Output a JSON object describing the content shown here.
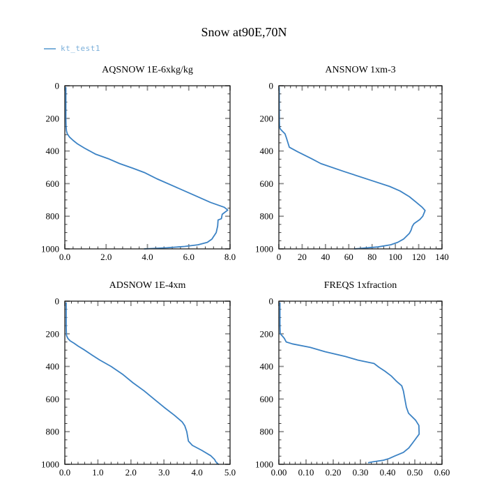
{
  "header": {
    "title": "Snow at90E,70N"
  },
  "legend": {
    "series_label": "kt_test1",
    "series_color": "#7cb0da"
  },
  "chart_data": {
    "type": "line",
    "title": "Snow at90E,70N",
    "series_name": "kt_test1",
    "line_color": "#3b82c4",
    "layout_hint": "2x2 grid of vertical profiles, pressure on y-axis inverted (0 top, 1000 bottom), ticks inward on all four sides, no grid, legend top-left",
    "y_axis": {
      "range": [
        0,
        1000
      ],
      "inverted": true,
      "tick_values": [
        0,
        200,
        400,
        600,
        800,
        1000
      ],
      "tick_labels": [
        "0",
        "200",
        "400",
        "600",
        "800",
        "1000"
      ],
      "minor_step": 50
    },
    "plots": [
      {
        "id": "aqsnow",
        "title": "AQSNOW  1E-6xkg/kg",
        "x_range": [
          0,
          8
        ],
        "x_tick_values": [
          0,
          2,
          4,
          6,
          8
        ],
        "x_tick_labels": [
          "0.0",
          "2.0",
          "4.0",
          "6.0",
          "8.0"
        ],
        "x_minor_step": 0.4,
        "points": [
          [
            10,
            0.05
          ],
          [
            100,
            0.05
          ],
          [
            200,
            0.05
          ],
          [
            250,
            0.06
          ],
          [
            277,
            0.08
          ],
          [
            295,
            0.12
          ],
          [
            315,
            0.23
          ],
          [
            335,
            0.4
          ],
          [
            357,
            0.62
          ],
          [
            383,
            0.96
          ],
          [
            420,
            1.5
          ],
          [
            447,
            2.1
          ],
          [
            477,
            2.65
          ],
          [
            506,
            3.3
          ],
          [
            532,
            3.85
          ],
          [
            570,
            4.45
          ],
          [
            620,
            5.35
          ],
          [
            670,
            6.25
          ],
          [
            715,
            7.05
          ],
          [
            745,
            7.72
          ],
          [
            762,
            7.89
          ],
          [
            788,
            7.62
          ],
          [
            815,
            7.58
          ],
          [
            823,
            7.42
          ],
          [
            860,
            7.4
          ],
          [
            900,
            7.33
          ],
          [
            940,
            7.12
          ],
          [
            960,
            6.9
          ],
          [
            975,
            6.45
          ],
          [
            985,
            5.8
          ],
          [
            993,
            4.95
          ],
          [
            1000,
            3.85
          ]
        ]
      },
      {
        "id": "ansnow",
        "title": "ANSNOW  1xm-3",
        "x_range": [
          0,
          140
        ],
        "x_tick_values": [
          0,
          20,
          40,
          60,
          80,
          100,
          120,
          140
        ],
        "x_tick_labels": [
          "0",
          "20",
          "40",
          "60",
          "80",
          "100",
          "120",
          "140"
        ],
        "x_minor_step": 5,
        "points": [
          [
            10,
            0.3
          ],
          [
            150,
            0.35
          ],
          [
            220,
            0.45
          ],
          [
            250,
            0.6
          ],
          [
            265,
            1.2
          ],
          [
            280,
            3.2
          ],
          [
            295,
            5.3
          ],
          [
            320,
            6.5
          ],
          [
            350,
            7.8
          ],
          [
            377,
            9.0
          ],
          [
            404,
            16
          ],
          [
            447,
            28
          ],
          [
            477,
            36
          ],
          [
            526,
            56
          ],
          [
            575,
            77
          ],
          [
            617,
            95
          ],
          [
            645,
            104
          ],
          [
            680,
            112
          ],
          [
            715,
            118
          ],
          [
            745,
            123
          ],
          [
            765,
            125.5
          ],
          [
            800,
            123.5
          ],
          [
            820,
            121
          ],
          [
            845,
            116
          ],
          [
            862,
            114.5
          ],
          [
            885,
            113.5
          ],
          [
            905,
            112
          ],
          [
            940,
            107
          ],
          [
            960,
            102
          ],
          [
            975,
            96
          ],
          [
            988,
            85
          ],
          [
            996,
            72
          ],
          [
            1000,
            65
          ]
        ]
      },
      {
        "id": "adsnow",
        "title": "ADSNOW  1E-4xm",
        "x_range": [
          0,
          5
        ],
        "x_tick_values": [
          0,
          1,
          2,
          3,
          4,
          5
        ],
        "x_tick_labels": [
          "0.0",
          "1.0",
          "2.0",
          "3.0",
          "4.0",
          "5.0"
        ],
        "x_minor_step": 0.2,
        "points": [
          [
            10,
            0.04
          ],
          [
            150,
            0.04
          ],
          [
            210,
            0.05
          ],
          [
            228,
            0.09
          ],
          [
            243,
            0.16
          ],
          [
            258,
            0.28
          ],
          [
            275,
            0.4
          ],
          [
            300,
            0.6
          ],
          [
            330,
            0.82
          ],
          [
            360,
            1.05
          ],
          [
            400,
            1.4
          ],
          [
            450,
            1.76
          ],
          [
            500,
            2.06
          ],
          [
            550,
            2.4
          ],
          [
            600,
            2.7
          ],
          [
            650,
            3.0
          ],
          [
            700,
            3.32
          ],
          [
            740,
            3.55
          ],
          [
            764,
            3.63
          ],
          [
            800,
            3.69
          ],
          [
            858,
            3.74
          ],
          [
            884,
            3.86
          ],
          [
            914,
            4.14
          ],
          [
            948,
            4.42
          ],
          [
            970,
            4.53
          ],
          [
            985,
            4.57
          ],
          [
            1000,
            4.65
          ]
        ]
      },
      {
        "id": "freqs",
        "title": "FREQS  1xfraction",
        "x_range": [
          0,
          0.6
        ],
        "x_tick_values": [
          0,
          0.1,
          0.2,
          0.3,
          0.4,
          0.5,
          0.6
        ],
        "x_tick_labels": [
          "0.00",
          "0.10",
          "0.20",
          "0.30",
          "0.40",
          "0.50",
          "0.60"
        ],
        "x_minor_step": 0.02,
        "points": [
          [
            10,
            0.004
          ],
          [
            150,
            0.004
          ],
          [
            200,
            0.005
          ],
          [
            212,
            0.012
          ],
          [
            228,
            0.02
          ],
          [
            250,
            0.027
          ],
          [
            262,
            0.05
          ],
          [
            283,
            0.115
          ],
          [
            310,
            0.17
          ],
          [
            339,
            0.245
          ],
          [
            361,
            0.29
          ],
          [
            382,
            0.35
          ],
          [
            405,
            0.368
          ],
          [
            429,
            0.39
          ],
          [
            458,
            0.413
          ],
          [
            490,
            0.432
          ],
          [
            519,
            0.452
          ],
          [
            550,
            0.458
          ],
          [
            605,
            0.464
          ],
          [
            650,
            0.469
          ],
          [
            687,
            0.477
          ],
          [
            730,
            0.503
          ],
          [
            762,
            0.515
          ],
          [
            815,
            0.516
          ],
          [
            858,
            0.497
          ],
          [
            900,
            0.478
          ],
          [
            927,
            0.458
          ],
          [
            950,
            0.425
          ],
          [
            965,
            0.405
          ],
          [
            975,
            0.385
          ],
          [
            985,
            0.345
          ],
          [
            990,
            0.33
          ]
        ]
      }
    ]
  }
}
